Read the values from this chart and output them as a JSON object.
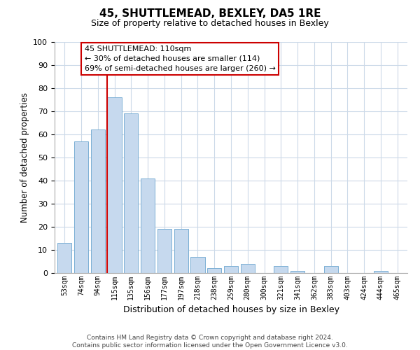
{
  "title": "45, SHUTTLEMEAD, BEXLEY, DA5 1RE",
  "subtitle": "Size of property relative to detached houses in Bexley",
  "xlabel": "Distribution of detached houses by size in Bexley",
  "ylabel": "Number of detached properties",
  "bar_labels": [
    "53sqm",
    "74sqm",
    "94sqm",
    "115sqm",
    "135sqm",
    "156sqm",
    "177sqm",
    "197sqm",
    "218sqm",
    "238sqm",
    "259sqm",
    "280sqm",
    "300sqm",
    "321sqm",
    "341sqm",
    "362sqm",
    "383sqm",
    "403sqm",
    "424sqm",
    "444sqm",
    "465sqm"
  ],
  "bar_values": [
    13,
    57,
    62,
    76,
    69,
    41,
    19,
    19,
    7,
    2,
    3,
    4,
    0,
    3,
    1,
    0,
    3,
    0,
    0,
    1,
    0
  ],
  "bar_color": "#c6d9ee",
  "bar_edge_color": "#7bafd4",
  "vline_color": "#cc0000",
  "ylim": [
    0,
    100
  ],
  "yticks": [
    0,
    10,
    20,
    30,
    40,
    50,
    60,
    70,
    80,
    90,
    100
  ],
  "annotation_title": "45 SHUTTLEMEAD: 110sqm",
  "annotation_line1": "← 30% of detached houses are smaller (114)",
  "annotation_line2": "69% of semi-detached houses are larger (260) →",
  "footer_line1": "Contains HM Land Registry data © Crown copyright and database right 2024.",
  "footer_line2": "Contains public sector information licensed under the Open Government Licence v3.0.",
  "background_color": "#ffffff",
  "grid_color": "#ccd9e8"
}
